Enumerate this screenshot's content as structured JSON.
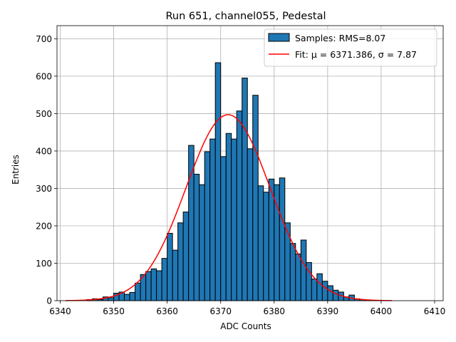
{
  "chart_data": {
    "type": "histogram",
    "title": "Run 651, channel055, Pedestal",
    "xlabel": "ADC Counts",
    "ylabel": "Entries",
    "xlim": [
      6339.4,
      6411.6
    ],
    "ylim": [
      0,
      735
    ],
    "xticks": [
      "6340",
      "6350",
      "6360",
      "6370",
      "6380",
      "6390",
      "6400",
      "6410"
    ],
    "yticks": [
      "0",
      "100",
      "200",
      "300",
      "400",
      "500",
      "600",
      "700"
    ],
    "grid": true,
    "legend_position": "top-right",
    "bar_color": "#1f77b4",
    "bar_edge_color": "#000000",
    "fit_color": "#ff0000",
    "legend": {
      "bars_label": "Samples: RMS=8.07",
      "fit_label": "Fit: μ = 6371.386, σ = 7.87"
    },
    "bins": {
      "start": 6341,
      "width": 1,
      "counts": [
        0,
        0,
        0,
        0,
        3,
        5,
        3,
        10,
        8,
        20,
        23,
        17,
        22,
        47,
        70,
        78,
        85,
        80,
        113,
        180,
        135,
        208,
        237,
        415,
        338,
        310,
        398,
        432,
        636,
        385,
        447,
        432,
        507,
        595,
        406,
        549,
        307,
        290,
        325,
        310,
        328,
        208,
        153,
        125,
        162,
        102,
        58,
        72,
        52,
        40,
        28,
        23,
        10,
        15,
        5,
        3,
        2,
        1,
        1,
        0,
        0,
        0,
        0,
        0,
        0,
        0,
        0
      ]
    },
    "fit": {
      "mu": 6371.386,
      "sigma": 7.87,
      "amplitude": 497,
      "x_range": [
        6341,
        6402
      ]
    }
  }
}
